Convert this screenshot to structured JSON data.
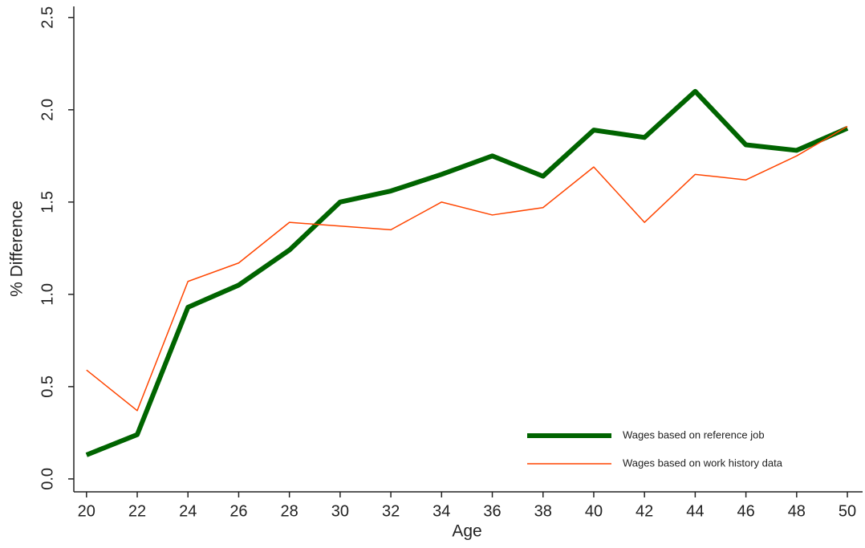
{
  "chart_data": {
    "type": "line",
    "x_label": "Age",
    "y_label": "% Difference",
    "x": [
      20,
      22,
      24,
      26,
      28,
      30,
      32,
      34,
      36,
      38,
      40,
      42,
      44,
      46,
      48,
      50
    ],
    "series": [
      {
        "name": "Wages based on reference job",
        "color": "#006400",
        "values": [
          0.13,
          0.24,
          0.93,
          1.05,
          1.24,
          1.5,
          1.56,
          1.65,
          1.75,
          1.64,
          1.89,
          1.85,
          2.1,
          1.81,
          1.78,
          1.9
        ]
      },
      {
        "name": "Wages based on work history data",
        "color": "#ff4500",
        "values": [
          0.59,
          0.37,
          1.07,
          1.17,
          1.39,
          1.37,
          1.35,
          1.5,
          1.43,
          1.47,
          1.69,
          1.39,
          1.65,
          1.62,
          1.75,
          1.91
        ]
      }
    ],
    "xlim": [
      19.5,
      50.6
    ],
    "ylim": [
      -0.07,
      2.56
    ],
    "xticks": [
      20,
      22,
      24,
      26,
      28,
      30,
      32,
      34,
      36,
      38,
      40,
      42,
      44,
      46,
      48,
      50
    ],
    "yticks": [
      {
        "value": 0,
        "label": "0.0"
      },
      {
        "value": 0.5,
        "label": "0.5"
      },
      {
        "value": 1,
        "label": "1.0"
      },
      {
        "value": 1.5,
        "label": "1.5"
      },
      {
        "value": 2,
        "label": "2.0"
      },
      {
        "value": 2.5,
        "label": "2.5"
      }
    ],
    "legend_position": "lower right"
  }
}
